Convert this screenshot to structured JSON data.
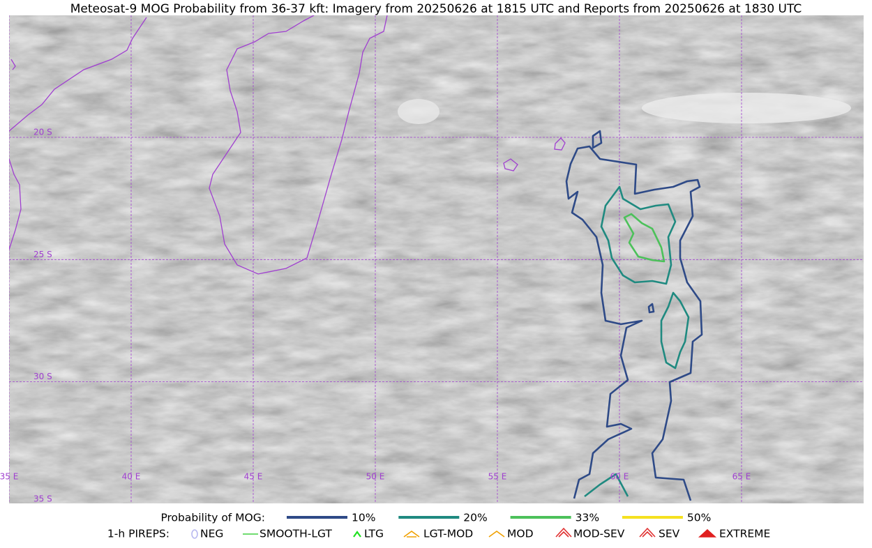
{
  "title": "Meteosat-9 MOG Probability from 36-37 kft: Imagery from 20250626 at 1815 UTC and Reports from 20250626 at 1830 UTC",
  "map": {
    "lat_labels": [
      "20 S",
      "25 S",
      "30 S",
      "35 S"
    ],
    "lon_labels": [
      "35 E",
      "40 E",
      "45 E",
      "50 E",
      "55 E",
      "60 E",
      "65 E"
    ]
  },
  "legend": {
    "probability": {
      "label": "Probability of MOG:",
      "levels": [
        {
          "label": "10%",
          "color": "#2e4a87"
        },
        {
          "label": "20%",
          "color": "#1f8a80"
        },
        {
          "label": "33%",
          "color": "#4cc15a"
        },
        {
          "label": "50%",
          "color": "#f5e11f"
        }
      ]
    },
    "pireps": {
      "label": "1-h PIREPS:",
      "items": [
        "NEG",
        "SMOOTH-LGT",
        "LTG",
        "LGT-MOD",
        "MOD",
        "MOD-SEV",
        "SEV",
        "EXTREME"
      ]
    }
  }
}
